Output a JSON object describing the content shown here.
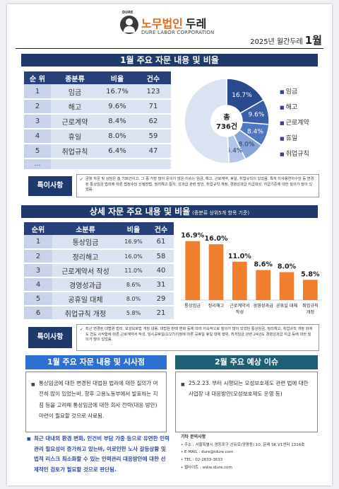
{
  "header": {
    "logo_small": "DURE",
    "logo_main": "노무법인",
    "logo_name": "두레",
    "logo_sub": "DURE LABOR CORPORATION",
    "issue_prefix": "2025년 월간두레",
    "issue_month": "1월"
  },
  "section1": {
    "title": "1월 주요 자문 내용 및 비율",
    "table": {
      "headers": [
        "순 위",
        "종분류",
        "비율",
        "건수"
      ],
      "rows": [
        {
          "rank": "1",
          "category": "임금",
          "ratio": "16.7%",
          "count": "123"
        },
        {
          "rank": "2",
          "category": "해고",
          "ratio": "9.6%",
          "count": "71"
        },
        {
          "rank": "3",
          "category": "근로계약",
          "ratio": "8.4%",
          "count": "62"
        },
        {
          "rank": "4",
          "category": "휴일",
          "ratio": "8.0%",
          "count": "59"
        },
        {
          "rank": "5",
          "category": "취업규칙",
          "ratio": "6.4%",
          "count": "47"
        }
      ],
      "more": "..."
    },
    "chart_data": {
      "type": "pie",
      "center_label": "총",
      "center_value": "736건",
      "slices": [
        {
          "label": "임금",
          "value": 16.7,
          "color": "#2a4a8e"
        },
        {
          "label": "해고",
          "value": 9.6,
          "color": "#3a5da8"
        },
        {
          "label": "근로계약",
          "value": 8.4,
          "color": "#4f76c2"
        },
        {
          "label": "휴일",
          "value": 8.0,
          "color": "#86a4d8"
        },
        {
          "label": "취업규칙",
          "value": 6.4,
          "color": "#b3c6e8"
        },
        {
          "label": "기타",
          "value": 50.9,
          "color": "#dbe3f2"
        }
      ],
      "slice_labels": [
        "16.7%",
        "9.6%",
        "8.4%",
        "8.0%",
        "6.4%"
      ],
      "legend": [
        "임금",
        "해고",
        "근로계약",
        "휴일",
        "취업규칙"
      ],
      "legend_placement": "right"
    },
    "special_label": "특이사항",
    "special_text": "금월 자문 및 상담은 총 736건이고, 그 중 가장 많이 문의가 많은 이슈는 임금, 해고, 근로계약, 휴일, 취업규칙이 있었음. 특히 미사용연차수당 등 변경된 통상임금 법리에 따른 법정수당 산정방법, 정리해고 절차, 성과급 관련 방안, 취업규칙 개정, 경영성과급 지급대상, 지급기준에 대한 질의가 많이 있었음"
  },
  "section2": {
    "title": "상세 자문 주요 내용 및 비율",
    "subtitle": "(종분류 상위5개 항목 기준)",
    "table": {
      "headers": [
        "순위",
        "소분류",
        "비율",
        "건수"
      ],
      "rows": [
        {
          "rank": "1",
          "category": "통상임금",
          "ratio": "16.9%",
          "count": "61"
        },
        {
          "rank": "2",
          "category": "정리해고",
          "ratio": "16.0%",
          "count": "58"
        },
        {
          "rank": "3",
          "category": "근로계약서 작성",
          "ratio": "11.0%",
          "count": "40"
        },
        {
          "rank": "4",
          "category": "경영성과급",
          "ratio": "8.6%",
          "count": "31"
        },
        {
          "rank": "5",
          "category": "공휴일 대체",
          "ratio": "8.0%",
          "count": "29"
        },
        {
          "rank": "6",
          "category": "취업규칙 개정",
          "ratio": "5.8%",
          "count": "21"
        }
      ]
    },
    "chart_data": {
      "type": "bar",
      "categories": [
        "통상임금",
        "정리해고",
        "근로계약서\n작성",
        "경영성과급",
        "공휴일 대체",
        "취업규칙\n개정"
      ],
      "values": [
        16.9,
        16.0,
        11.0,
        8.6,
        8.0,
        5.8
      ],
      "labels": [
        "16.9%",
        "16.0%",
        "11.0%",
        "8.6%",
        "8.0%",
        "5.8%"
      ],
      "ylim": [
        0,
        20
      ],
      "color": "#ef7f2e",
      "grid": false
    },
    "special_label": "특이사항",
    "special_text": "최근 변경된 대법원 법리, 모성보호법 개정 내용, 대법원 판례 변화 등에 따라 지속적으로 질의가 많이 있었던 통상임금, 정리해고, 취업규칙 개정 외에도 연도 시작함에 따른 근로계약서 작성, 임시공휴일(1/27)지정에 따른 공휴일 휴일 대체 행위, 최저임금 관련 24년도 경영성과급 지급 등에 대한 질의가 많이 있었음."
  },
  "section3": {
    "left_title": "1월 주요 자문 내용 및 시사점",
    "left_text": "통상임금에 대한 변경된 대법원 법리에 대한 질의가 여전히 많이 있었는바, 향후 고용노동부에서 발표하는 지침 등을 고려해 통상임금에 대한 회사 전략(대응 방안) 마련이 필요할 것으로 사료됨.",
    "right_title": "2월 주요 예상 이슈",
    "right_text": "25.2.23. 부터 시행되는 모성보호제도 관련 법에 대한 사업장 내 대응방안(모성보호제도 운영 등)",
    "notes": "최근 대내외 환경 변화, 인건비 부담 가중 등으로 유연한 인력관리 필요성이 증가하고 있는바, 이로인한 노사 갈등상황 및 법적 리스크 최소화할 수 있는 인력관리 대응방안에 대한 선제적인 검토가 필요할 것으로 판단됨.",
    "contact": {
      "heading": "기타 문의사항",
      "address": "주소 : 서울특별시 영등포구 선유로(양평동) 10, 문래 SK V1센터 1316호",
      "email": "E-MAIL : dure@idure.com",
      "tel": "TEL : 02-2633-3633",
      "web": "웹사이트 : www.idure.com"
    }
  }
}
